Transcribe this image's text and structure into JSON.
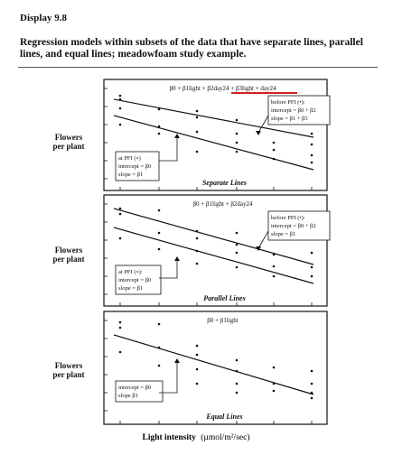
{
  "header": {
    "title": "Display 9.8",
    "subtitle": "Regression models within subsets of the data that have separate lines, parallel lines, and equal lines; meadowfoam study example."
  },
  "axis": {
    "y_label_line1": "Flowers",
    "y_label_line2": "per plant",
    "x_label_bold": "Light intensity",
    "x_label_unit": "(µmol/m²/sec)"
  },
  "panels": [
    {
      "title": "Separate Lines",
      "equation": "β0 + β1light + β2day24 + β3light × day24",
      "before_box": [
        "before PFI (•):",
        "intercept = β0 + β2",
        "slope = β1 + β3"
      ],
      "at_box": [
        "at PFI (∘)",
        "intercept = β0",
        "slope = β1"
      ]
    },
    {
      "title": "Parallel Lines",
      "equation": "β0 + β1light + β2day24",
      "before_box": [
        "before PFI (•):",
        "intercept = β0 + β2",
        "slope = β1"
      ],
      "at_box": [
        "at PFI (∘):",
        "intercept = β0",
        "slope = β1"
      ]
    },
    {
      "title": "Equal Lines",
      "equation": "β0 + β1light",
      "before_box": [],
      "at_box": [
        "intercept = β0",
        "slope   β1"
      ]
    }
  ],
  "colors": {
    "highlight": "#d32020",
    "ink": "#111111"
  }
}
